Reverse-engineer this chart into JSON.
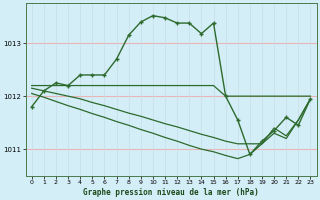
{
  "title": "Graphe pression niveau de la mer (hPa)",
  "background_color": "#d4eef7",
  "grid_h_color": "#e8b4b4",
  "grid_v_color": "#c8dde8",
  "line_color": "#2d6a2d",
  "xlim": [
    -0.5,
    23.5
  ],
  "ylim": [
    1010.5,
    1013.75
  ],
  "yticks": [
    1011,
    1012,
    1013
  ],
  "xticks": [
    0,
    1,
    2,
    3,
    4,
    5,
    6,
    7,
    8,
    9,
    10,
    11,
    12,
    13,
    14,
    15,
    16,
    17,
    18,
    19,
    20,
    21,
    22,
    23
  ],
  "main_series": [
    1011.8,
    1012.1,
    1012.25,
    1012.2,
    1012.4,
    1012.4,
    1012.4,
    1012.7,
    1013.15,
    1013.4,
    1013.52,
    1013.48,
    1013.38,
    1013.38,
    1013.18,
    1013.38,
    1012.0,
    1011.55,
    1010.9,
    1011.15,
    1011.35,
    1011.6,
    1011.45,
    1011.95
  ],
  "flat_line": [
    1012.2,
    1012.2,
    1012.2,
    1012.2,
    1012.2,
    1012.2,
    1012.2,
    1012.2,
    1012.2,
    1012.2,
    1012.2,
    1012.2,
    1012.2,
    1012.2,
    1012.2,
    1012.2,
    1012.0,
    1012.0,
    1012.0,
    1012.0,
    1012.0,
    1012.0,
    1012.0,
    1012.0
  ],
  "diag_line1": [
    1012.15,
    1012.1,
    1012.05,
    1012.0,
    1011.95,
    1011.88,
    1011.82,
    1011.75,
    1011.68,
    1011.62,
    1011.55,
    1011.48,
    1011.42,
    1011.35,
    1011.28,
    1011.22,
    1011.15,
    1011.1,
    1011.1,
    1011.1,
    1011.4,
    1011.25,
    1011.55,
    1011.95
  ],
  "diag_line2": [
    1012.05,
    1011.98,
    1011.9,
    1011.82,
    1011.75,
    1011.67,
    1011.6,
    1011.52,
    1011.45,
    1011.37,
    1011.3,
    1011.22,
    1011.15,
    1011.07,
    1011.0,
    1010.95,
    1010.88,
    1010.82,
    1010.9,
    1011.1,
    1011.3,
    1011.2,
    1011.55,
    1011.95
  ]
}
